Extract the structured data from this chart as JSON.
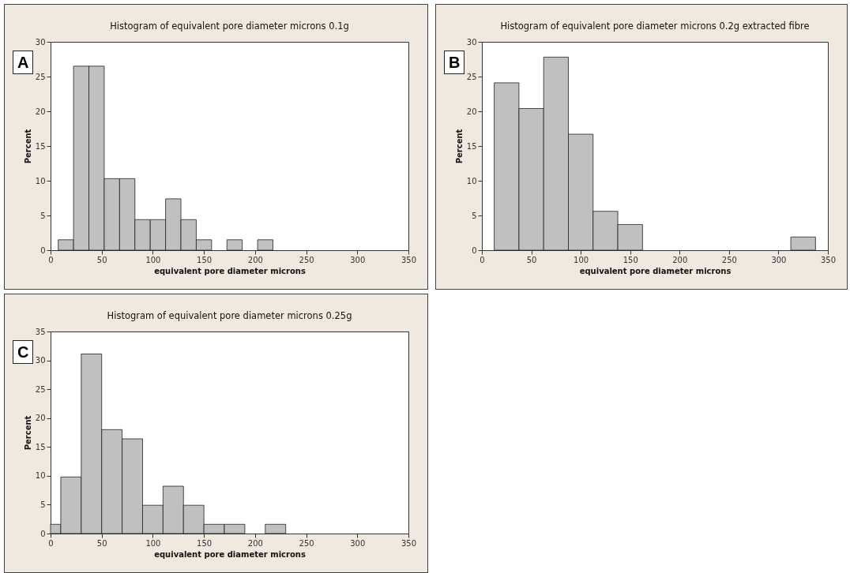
{
  "chart_data": [
    {
      "type": "histogram",
      "title": "Histogram of equivalent pore diameter microns 0.1g",
      "xlabel": "equivalent pore diameter microns",
      "ylabel": "Percent",
      "annotations": [
        "A"
      ],
      "color": "#c0c0c0",
      "bins": [
        7.5,
        22.5,
        37.5,
        52.5,
        67.5,
        82.5,
        97.5,
        112.5,
        127.5,
        142.5,
        157.5,
        172.5,
        187.5,
        202.5,
        217.5
      ],
      "values": [
        1.5,
        26.5,
        26.5,
        10.3,
        10.3,
        4.4,
        4.4,
        7.4,
        4.4,
        1.5,
        0,
        1.5,
        0,
        1.5
      ],
      "xlim": [
        0,
        350
      ],
      "xticks": [
        0,
        50,
        100,
        150,
        200,
        250,
        300,
        350
      ],
      "ylim": [
        0,
        30
      ],
      "yticks": [
        0,
        5,
        10,
        15,
        20,
        25,
        30
      ]
    },
    {
      "type": "histogram",
      "title": "Histogram of equivalent pore diameter microns 0.2g extracted fibre",
      "xlabel": "equivalent pore diameter microns",
      "ylabel": "Percent",
      "annotations": [
        "B"
      ],
      "color": "#c0c0c0",
      "bins": [
        12.5,
        37.5,
        62.5,
        87.5,
        112.5,
        137.5,
        162.5,
        187.5,
        212.5,
        237.5,
        262.5,
        287.5,
        312.5,
        337.5
      ],
      "values": [
        24.1,
        20.4,
        27.8,
        16.7,
        5.6,
        3.7,
        0,
        0,
        0,
        0,
        0,
        0,
        1.9
      ],
      "xlim": [
        0,
        350
      ],
      "xticks": [
        0,
        50,
        100,
        150,
        200,
        250,
        300,
        350
      ],
      "ylim": [
        0,
        30
      ],
      "yticks": [
        0,
        5,
        10,
        15,
        20,
        25,
        30
      ]
    },
    {
      "type": "histogram",
      "title": "Histogram of equivalent pore diameter microns 0.25g",
      "xlabel": "equivalent pore diameter microns",
      "ylabel": "Percent",
      "annotations": [
        "C"
      ],
      "color": "#c0c0c0",
      "bins": [
        0,
        10,
        30,
        50,
        70,
        90,
        110,
        130,
        150,
        170,
        190,
        210,
        230
      ],
      "values": [
        1.6,
        9.8,
        31.1,
        18.0,
        16.4,
        4.9,
        8.2,
        4.9,
        1.6,
        1.6,
        0,
        1.6
      ],
      "xlim": [
        0,
        350
      ],
      "xticks": [
        0,
        50,
        100,
        150,
        200,
        250,
        300,
        350
      ],
      "ylim": [
        0,
        35
      ],
      "yticks": [
        0,
        5,
        10,
        15,
        20,
        25,
        30,
        35
      ]
    }
  ]
}
